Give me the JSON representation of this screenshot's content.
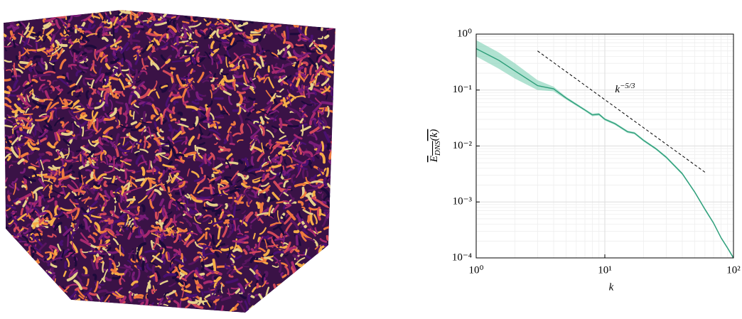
{
  "chart_data": {
    "type": "line",
    "x": [
      1,
      1.5,
      2,
      3,
      4,
      5,
      7,
      8,
      9,
      10,
      12,
      15,
      17,
      20,
      25,
      30,
      40,
      50,
      60,
      70,
      80,
      90,
      100
    ],
    "values": [
      0.55,
      0.34,
      0.22,
      0.12,
      0.105,
      0.072,
      0.044,
      0.036,
      0.037,
      0.03,
      0.025,
      0.018,
      0.017,
      0.0126,
      0.0089,
      0.0063,
      0.0032,
      0.0015,
      0.00074,
      0.00042,
      0.00023,
      0.00015,
      0.0001
    ],
    "lower": [
      0.4,
      0.24,
      0.16,
      0.1,
      0.095,
      0.068,
      0.042,
      0.034,
      0.035,
      0.0285,
      0.0238,
      0.0171,
      0.0162,
      0.012,
      0.0085,
      0.006,
      0.00305,
      0.00143,
      0.0007,
      0.0004,
      0.00022,
      0.000143,
      9.5e-05
    ],
    "upper": [
      0.78,
      0.47,
      0.3,
      0.15,
      0.115,
      0.076,
      0.046,
      0.038,
      0.039,
      0.0315,
      0.0262,
      0.0189,
      0.0178,
      0.0132,
      0.0093,
      0.0066,
      0.00335,
      0.00157,
      0.00078,
      0.00044,
      0.00024,
      0.000157,
      0.000105
    ],
    "color": "#2e9e7a",
    "band_color": "#8fd6bd",
    "reference": {
      "x": [
        3,
        60
      ],
      "values": [
        0.5,
        0.0034
      ],
      "color": "#000"
    },
    "annotation": {
      "text": "k",
      "superscript": "−5/3",
      "x": 12,
      "y": 0.1
    },
    "xlabel": "k",
    "ylabel": "E",
    "ylabel_sub": "DNS",
    "ylabel_tail": "(k)",
    "xscale": "log",
    "yscale": "log",
    "xlim": [
      1,
      100
    ],
    "ylim": [
      0.0001,
      1
    ],
    "xticks": [
      {
        "value": 1,
        "label": "10⁰"
      },
      {
        "value": 10,
        "label": "10¹"
      },
      {
        "value": 100,
        "label": "10²"
      }
    ],
    "yticks": [
      {
        "value": 0.0001,
        "label": "10⁻⁴"
      },
      {
        "value": 0.001,
        "label": "10⁻³"
      },
      {
        "value": 0.01,
        "label": "10⁻²"
      },
      {
        "value": 0.1,
        "label": "10⁻¹"
      },
      {
        "value": 1,
        "label": "10⁰"
      }
    ],
    "grid": true
  }
}
